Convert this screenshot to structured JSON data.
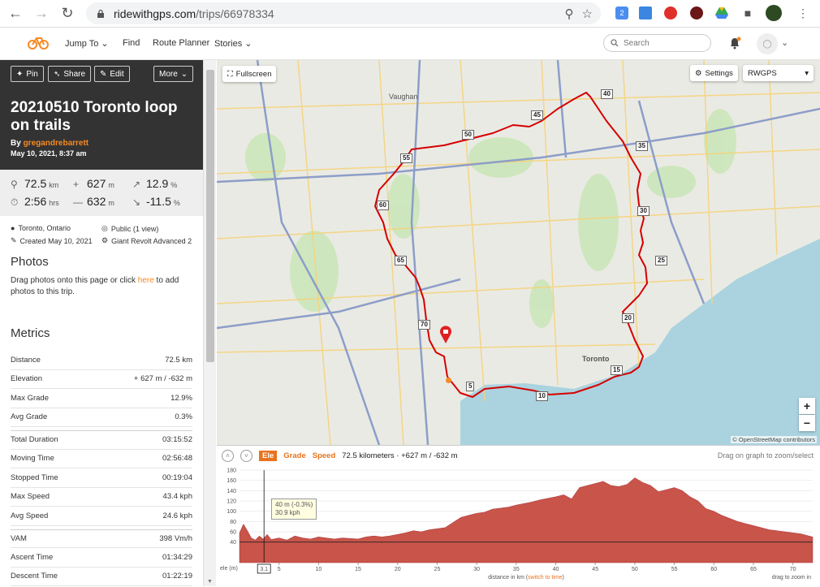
{
  "browser": {
    "url_host": "ridewithgps.com",
    "url_path": "/trips/66978334",
    "ext_badge": "2"
  },
  "header": {
    "nav": [
      "Jump To",
      "Find",
      "Route Planner",
      "Stories"
    ],
    "search_placeholder": "Search"
  },
  "trip": {
    "buttons": {
      "pin": "Pin",
      "share": "Share",
      "edit": "Edit",
      "more": "More"
    },
    "title": "20210510 Toronto loop on trails",
    "by_prefix": "By ",
    "author": "gregandrebarrett",
    "date": "May 10, 2021, 8:37 am"
  },
  "stats": {
    "distance": "72.5",
    "distance_unit": "km",
    "climb": "627",
    "climb_unit": "m",
    "max_grade": "12.9",
    "max_grade_unit": "%",
    "time": "2:56",
    "time_unit": "hrs",
    "descent": "632",
    "descent_unit": "m",
    "min_grade": "-11.5",
    "min_grade_unit": "%"
  },
  "meta": {
    "location": "Toronto, Ontario",
    "visibility": "Public (1 view)",
    "created": "Created May 10, 2021",
    "bike": "Giant Revolt Advanced 2"
  },
  "photos": {
    "heading": "Photos",
    "text_before": "Drag photos onto this page or click ",
    "link": "here",
    "text_after": " to add photos to this trip."
  },
  "metrics": {
    "heading": "Metrics",
    "rows": [
      {
        "label": "Distance",
        "value": "72.5 km"
      },
      {
        "label": "Elevation",
        "value": "+ 627 m / -632 m"
      },
      {
        "label": "Max Grade",
        "value": "12.9%"
      },
      {
        "label": "Avg Grade",
        "value": "0.3%"
      },
      {
        "label": "Total Duration",
        "value": "03:15:52"
      },
      {
        "label": "Moving Time",
        "value": "02:56:48"
      },
      {
        "label": "Stopped Time",
        "value": "00:19:04"
      },
      {
        "label": "Max Speed",
        "value": "43.4 kph"
      },
      {
        "label": "Avg Speed",
        "value": "24.6 kph"
      },
      {
        "label": "VAM",
        "value": "398 Vm/h"
      },
      {
        "label": "Ascent Time",
        "value": "01:34:29"
      },
      {
        "label": "Descent Time",
        "value": "01:22:19"
      }
    ]
  },
  "map": {
    "fullscreen": "Fullscreen",
    "settings": "Settings",
    "layer": "RWGPS",
    "attribution": "© OpenStreetMap contributors",
    "labels": {
      "vaughan": "Vaughan",
      "toronto": "Toronto"
    },
    "km_markers": [
      "5",
      "10",
      "15",
      "20",
      "25",
      "30",
      "35",
      "40",
      "45",
      "50",
      "55",
      "60",
      "65",
      "70"
    ],
    "zoom_in": "+",
    "zoom_out": "−"
  },
  "elevation": {
    "tabs": {
      "ele": "Ele",
      "grade": "Grade",
      "speed": "Speed"
    },
    "summary": "72.5 kilometers · +627 m / -632 m",
    "hint": "Drag on graph to zoom/select",
    "tooltip_line1": "40 m (-0.3%)",
    "tooltip_line2": "30.9 kph",
    "y_ticks": [
      "180",
      "160",
      "140",
      "120",
      "100",
      "80",
      "60",
      "40"
    ],
    "y_unit": "ele (m)",
    "x_ticks": [
      "5",
      "10",
      "15",
      "20",
      "25",
      "30",
      "35",
      "40",
      "45",
      "50",
      "55",
      "60",
      "65",
      "70"
    ],
    "cursor_x": "3.1",
    "x_label_prefix": "distance in km (",
    "x_label_link": "switch to time",
    "x_label_suffix": ")",
    "zoom_hint": "drag to zoom in",
    "ylim": [
      0,
      180
    ],
    "xlim": [
      0,
      72.5
    ],
    "profile": [
      [
        0,
        58
      ],
      [
        0.5,
        75
      ],
      [
        1,
        62
      ],
      [
        1.5,
        48
      ],
      [
        2,
        44
      ],
      [
        2.5,
        52
      ],
      [
        3,
        46
      ],
      [
        3.5,
        55
      ],
      [
        4,
        45
      ],
      [
        5,
        48
      ],
      [
        6,
        44
      ],
      [
        7,
        52
      ],
      [
        8,
        48
      ],
      [
        9,
        46
      ],
      [
        10,
        50
      ],
      [
        11,
        48
      ],
      [
        12,
        46
      ],
      [
        13,
        48
      ],
      [
        14,
        47
      ],
      [
        15,
        46
      ],
      [
        16,
        50
      ],
      [
        17,
        52
      ],
      [
        18,
        50
      ],
      [
        19,
        52
      ],
      [
        20,
        55
      ],
      [
        21,
        58
      ],
      [
        22,
        62
      ],
      [
        23,
        60
      ],
      [
        24,
        64
      ],
      [
        25,
        66
      ],
      [
        26,
        68
      ],
      [
        27,
        78
      ],
      [
        28,
        88
      ],
      [
        29,
        92
      ],
      [
        30,
        96
      ],
      [
        31,
        98
      ],
      [
        32,
        104
      ],
      [
        33,
        106
      ],
      [
        34,
        108
      ],
      [
        35,
        112
      ],
      [
        36,
        115
      ],
      [
        37,
        118
      ],
      [
        38,
        122
      ],
      [
        39,
        125
      ],
      [
        40,
        128
      ],
      [
        41,
        132
      ],
      [
        42,
        124
      ],
      [
        43,
        146
      ],
      [
        44,
        150
      ],
      [
        45,
        154
      ],
      [
        46,
        158
      ],
      [
        47,
        150
      ],
      [
        48,
        148
      ],
      [
        49,
        152
      ],
      [
        50,
        165
      ],
      [
        51,
        156
      ],
      [
        52,
        150
      ],
      [
        53,
        138
      ],
      [
        54,
        142
      ],
      [
        55,
        146
      ],
      [
        56,
        140
      ],
      [
        57,
        128
      ],
      [
        58,
        120
      ],
      [
        59,
        105
      ],
      [
        60,
        100
      ],
      [
        61,
        92
      ],
      [
        62,
        86
      ],
      [
        63,
        80
      ],
      [
        64,
        76
      ],
      [
        65,
        72
      ],
      [
        66,
        68
      ],
      [
        67,
        64
      ],
      [
        68,
        62
      ],
      [
        69,
        60
      ],
      [
        70,
        58
      ],
      [
        71,
        56
      ],
      [
        72,
        52
      ],
      [
        72.5,
        50
      ]
    ]
  }
}
